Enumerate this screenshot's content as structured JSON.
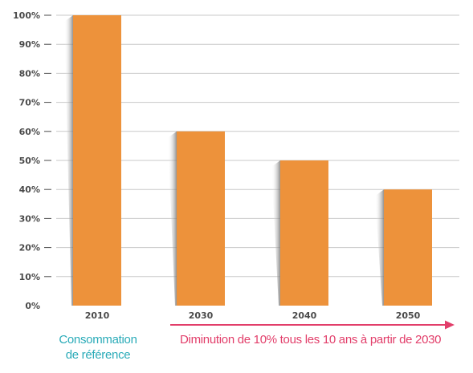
{
  "colors": {
    "bar": "#ED923B",
    "bar_shadow": "#7a7a7a",
    "grid": "#c8c8c8",
    "axis_text": "#4a4a4a",
    "note_teal": "#2AABB8",
    "note_pink": "#E23E6A"
  },
  "chart_data": {
    "type": "bar",
    "categories": [
      "2010",
      "2030",
      "2040",
      "2050"
    ],
    "values": [
      100,
      60,
      50,
      40
    ],
    "ylim": [
      0,
      100
    ],
    "yticks": [
      "0%",
      "10%",
      "20%",
      "30%",
      "40%",
      "50%",
      "60%",
      "70%",
      "80%",
      "90%",
      "100%"
    ],
    "grid": true,
    "annotations": {
      "baseline_label_line1": "Consommation",
      "baseline_label_line2": "de référence",
      "reduction_label": "Diminution de 10% tous les 10 ans à partir de 2030"
    }
  }
}
